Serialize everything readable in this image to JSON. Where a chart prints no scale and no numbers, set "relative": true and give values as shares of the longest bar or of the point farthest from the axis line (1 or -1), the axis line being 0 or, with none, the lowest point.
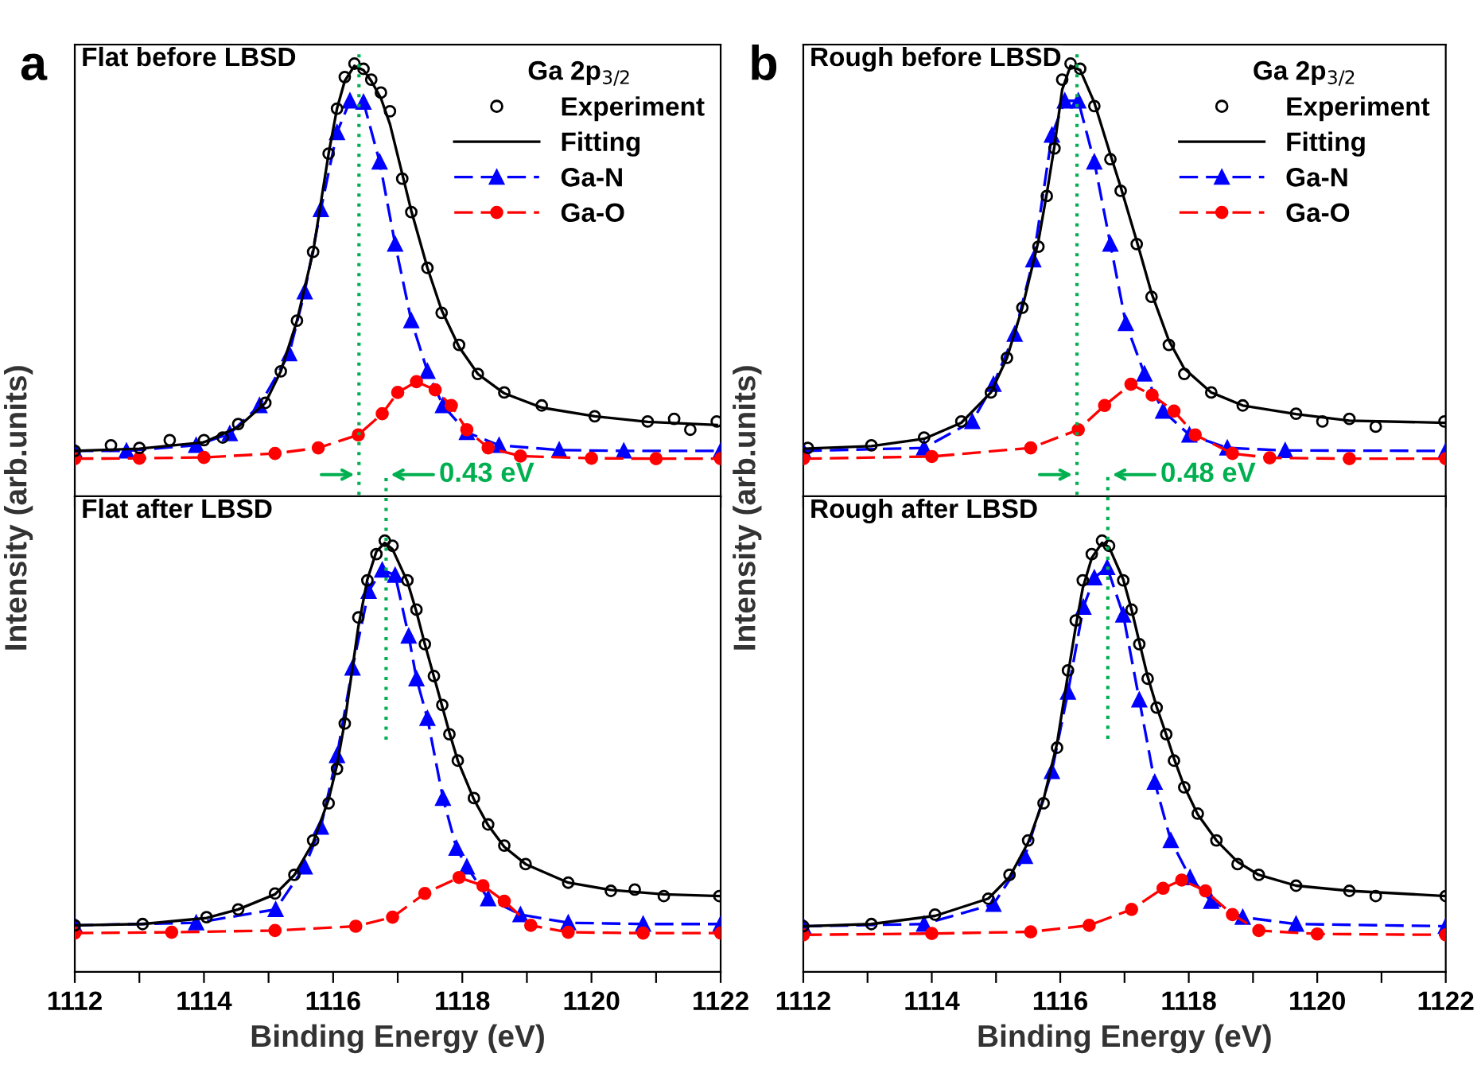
{
  "chart_data": [
    {
      "type": "line",
      "relative": true,
      "xlim": [
        1112,
        1122
      ],
      "xticks": [
        1112,
        {
          "value": 1113,
          "label": null
        },
        1114,
        {
          "value": 1115,
          "label": null
        },
        1116,
        {
          "value": 1117,
          "label": null
        },
        1118,
        {
          "value": 1119,
          "label": null
        },
        1120,
        {
          "value": 1121,
          "label": null
        },
        1122
      ],
      "tick_labels": false,
      "legend": "top right",
      "legend_title": "Ga 2p$_{3/2}$",
      "annotations": [
        "a",
        "Flat before LBSD",
        "0.43 eV"
      ],
      "ref_lines": [
        {
          "axis": "x",
          "value": 1116.4,
          "color": "#00b050",
          "line_style": "dotted"
        }
      ],
      "series": [
        {
          "name": "Experiment",
          "type": "scatter",
          "marker": "circle",
          "color": "#000000",
          "x": [
            1112.0,
            1112.56,
            1113.0,
            1113.47,
            1114.0,
            1114.29,
            1114.53,
            1114.95,
            1115.19,
            1115.44,
            1115.69,
            1115.93,
            1116.06,
            1116.18,
            1116.33,
            1116.47,
            1116.59,
            1116.74,
            1116.88,
            1117.07,
            1117.21,
            1117.46,
            1117.68,
            1117.95,
            1118.24,
            1118.65,
            1119.23,
            1120.05,
            1120.87,
            1121.28,
            1121.53,
            1121.94
          ],
          "values": [
            0.105,
            0.118,
            0.112,
            0.13,
            0.13,
            0.136,
            0.167,
            0.216,
            0.289,
            0.406,
            0.565,
            0.792,
            0.896,
            0.969,
            1.0,
            0.988,
            0.963,
            0.933,
            0.89,
            0.734,
            0.657,
            0.528,
            0.424,
            0.35,
            0.283,
            0.24,
            0.21,
            0.185,
            0.173,
            0.179,
            0.154,
            0.173
          ]
        },
        {
          "name": "Fitting",
          "marker": "none",
          "line_style": "solid",
          "color": "#000000",
          "x": [
            1112.0,
            1113.0,
            1114.0,
            1114.53,
            1114.95,
            1115.19,
            1115.44,
            1115.69,
            1115.93,
            1116.06,
            1116.18,
            1116.33,
            1116.47,
            1116.59,
            1116.74,
            1116.88,
            1117.07,
            1117.21,
            1117.46,
            1117.68,
            1117.95,
            1118.24,
            1118.65,
            1119.23,
            1120.05,
            1120.87,
            1121.94
          ],
          "values": [
            0.105,
            0.11,
            0.125,
            0.16,
            0.216,
            0.289,
            0.406,
            0.565,
            0.792,
            0.896,
            0.96,
            0.995,
            0.985,
            0.96,
            0.92,
            0.86,
            0.745,
            0.66,
            0.528,
            0.43,
            0.345,
            0.283,
            0.238,
            0.205,
            0.185,
            0.172,
            0.165
          ]
        },
        {
          "name": "Ga-N",
          "marker": "triangle",
          "line_style": "dashed",
          "color": "#0000ff",
          "x": [
            1112.0,
            1112.8,
            1113.88,
            1114.4,
            1114.86,
            1115.32,
            1115.56,
            1115.81,
            1116.06,
            1116.26,
            1116.47,
            1116.72,
            1116.96,
            1117.21,
            1117.46,
            1117.7,
            1118.07,
            1118.57,
            1119.5,
            1120.5,
            1122.0
          ],
          "values": [
            0.105,
            0.105,
            0.118,
            0.145,
            0.21,
            0.33,
            0.473,
            0.663,
            0.841,
            0.914,
            0.911,
            0.773,
            0.583,
            0.406,
            0.289,
            0.21,
            0.148,
            0.118,
            0.107,
            0.105,
            0.105
          ]
        },
        {
          "name": "Ga-O",
          "marker": "circle",
          "line_style": "dashed",
          "color": "#ff0000",
          "x": [
            1112.0,
            1113.0,
            1114.0,
            1115.1,
            1115.77,
            1116.39,
            1116.76,
            1117.0,
            1117.29,
            1117.58,
            1117.83,
            1118.07,
            1118.4,
            1118.9,
            1120.0,
            1121.0,
            1122.0
          ],
          "values": [
            0.087,
            0.088,
            0.09,
            0.099,
            0.112,
            0.142,
            0.191,
            0.24,
            0.265,
            0.246,
            0.21,
            0.154,
            0.112,
            0.093,
            0.088,
            0.087,
            0.087
          ]
        }
      ]
    },
    {
      "type": "line",
      "relative": true,
      "xlim": [
        1112,
        1122
      ],
      "xticks": [
        1112,
        {
          "value": 1113,
          "label": null
        },
        1114,
        {
          "value": 1115,
          "label": null
        },
        1116,
        {
          "value": 1117,
          "label": null
        },
        1118,
        {
          "value": 1119,
          "label": null
        },
        1120,
        {
          "value": 1121,
          "label": null
        },
        1122
      ],
      "tick_labels": "x",
      "xlabel": "Binding Energy (eV)",
      "ylabel": "Intensity (arb.units)",
      "annotations": [
        null,
        "Flat after LBSD"
      ],
      "ref_lines": [
        {
          "axis": "x",
          "value": 1116.82,
          "color": "#00b050",
          "line_style": "dotted"
        }
      ],
      "series": [
        {
          "type": "scatter",
          "marker": "circle",
          "color": "#000000",
          "x": [
            1112.0,
            1113.05,
            1114.04,
            1114.53,
            1115.1,
            1115.4,
            1115.69,
            1115.93,
            1116.06,
            1116.18,
            1116.39,
            1116.53,
            1116.67,
            1116.8,
            1116.92,
            1117.15,
            1117.29,
            1117.42,
            1117.56,
            1117.69,
            1117.8,
            1117.93,
            1118.18,
            1118.4,
            1118.65,
            1118.98,
            1119.64,
            1120.3,
            1120.67,
            1121.12,
            1121.98
          ],
          "values": [
            0.108,
            0.111,
            0.127,
            0.145,
            0.182,
            0.225,
            0.305,
            0.391,
            0.471,
            0.576,
            0.822,
            0.908,
            0.969,
            1.0,
            0.988,
            0.908,
            0.84,
            0.76,
            0.686,
            0.619,
            0.551,
            0.49,
            0.403,
            0.342,
            0.293,
            0.25,
            0.207,
            0.188,
            0.191,
            0.176,
            0.176
          ]
        },
        {
          "marker": "none",
          "line_style": "solid",
          "color": "#000000",
          "x": [
            1112.0,
            1113.05,
            1114.04,
            1114.53,
            1115.1,
            1115.4,
            1115.69,
            1115.93,
            1116.06,
            1116.18,
            1116.39,
            1116.53,
            1116.67,
            1116.8,
            1116.92,
            1117.15,
            1117.29,
            1117.42,
            1117.56,
            1117.69,
            1117.8,
            1117.93,
            1118.18,
            1118.4,
            1118.65,
            1118.98,
            1119.64,
            1120.3,
            1121.12,
            1121.98
          ],
          "values": [
            0.108,
            0.111,
            0.125,
            0.145,
            0.18,
            0.225,
            0.3,
            0.4,
            0.48,
            0.58,
            0.8,
            0.91,
            0.975,
            0.995,
            0.98,
            0.905,
            0.835,
            0.76,
            0.685,
            0.615,
            0.555,
            0.49,
            0.4,
            0.34,
            0.29,
            0.25,
            0.207,
            0.19,
            0.18,
            0.176
          ]
        },
        {
          "marker": "triangle",
          "line_style": "dashed",
          "color": "#0000ff",
          "x": [
            1112.0,
            1113.88,
            1115.11,
            1115.56,
            1115.81,
            1116.06,
            1116.3,
            1116.55,
            1116.76,
            1116.96,
            1117.17,
            1117.29,
            1117.46,
            1117.7,
            1117.91,
            1118.07,
            1118.4,
            1118.9,
            1119.64,
            1120.8,
            1122.0
          ],
          "values": [
            0.108,
            0.114,
            0.145,
            0.244,
            0.336,
            0.502,
            0.705,
            0.883,
            0.932,
            0.92,
            0.779,
            0.68,
            0.588,
            0.403,
            0.287,
            0.244,
            0.17,
            0.133,
            0.114,
            0.111,
            0.111
          ]
        },
        {
          "marker": "circle",
          "line_style": "dashed",
          "color": "#ff0000",
          "x": [
            1112.0,
            1113.5,
            1115.1,
            1116.35,
            1116.92,
            1117.42,
            1117.95,
            1118.32,
            1118.65,
            1119.06,
            1119.64,
            1120.8,
            1122.0
          ],
          "values": [
            0.09,
            0.092,
            0.096,
            0.106,
            0.127,
            0.182,
            0.219,
            0.2,
            0.164,
            0.108,
            0.092,
            0.09,
            0.09
          ]
        }
      ]
    },
    {
      "type": "line",
      "relative": true,
      "xlim": [
        1112,
        1122
      ],
      "xticks": [
        1112,
        {
          "value": 1113,
          "label": null
        },
        1114,
        {
          "value": 1115,
          "label": null
        },
        1116,
        {
          "value": 1117,
          "label": null
        },
        1118,
        {
          "value": 1119,
          "label": null
        },
        1120,
        {
          "value": 1121,
          "label": null
        },
        1122
      ],
      "tick_labels": false,
      "legend": "top right",
      "legend_title": "Ga 2p$_{3/2}$",
      "annotations": [
        "b",
        "Rough before LBSD",
        "0.48 eV"
      ],
      "ref_lines": [
        {
          "axis": "x",
          "value": 1116.26,
          "color": "#00b050",
          "line_style": "dotted"
        }
      ],
      "series": [
        {
          "name": "Experiment",
          "type": "scatter",
          "marker": "circle",
          "color": "#000000",
          "x": [
            1112.07,
            1113.06,
            1113.88,
            1114.46,
            1114.92,
            1115.17,
            1115.41,
            1115.66,
            1115.79,
            1115.91,
            1116.03,
            1116.16,
            1116.31,
            1116.53,
            1116.78,
            1116.94,
            1117.19,
            1117.42,
            1117.69,
            1117.93,
            1118.35,
            1118.84,
            1119.67,
            1120.08,
            1120.5,
            1120.91,
            1121.98
          ],
          "values": [
            0.112,
            0.118,
            0.136,
            0.173,
            0.24,
            0.32,
            0.436,
            0.577,
            0.694,
            0.804,
            0.963,
            1.0,
            0.988,
            0.902,
            0.779,
            0.706,
            0.583,
            0.461,
            0.35,
            0.283,
            0.24,
            0.21,
            0.191,
            0.173,
            0.179,
            0.161,
            0.173
          ]
        },
        {
          "name": "Fitting",
          "marker": "none",
          "line_style": "solid",
          "color": "#000000",
          "x": [
            1112.0,
            1113.06,
            1113.88,
            1114.46,
            1114.92,
            1115.17,
            1115.41,
            1115.66,
            1115.79,
            1115.91,
            1116.03,
            1116.16,
            1116.31,
            1116.53,
            1116.78,
            1116.94,
            1117.19,
            1117.42,
            1117.69,
            1117.93,
            1118.35,
            1118.84,
            1119.67,
            1120.5,
            1121.98
          ],
          "values": [
            0.11,
            0.116,
            0.133,
            0.17,
            0.24,
            0.32,
            0.436,
            0.59,
            0.7,
            0.81,
            0.94,
            0.995,
            0.985,
            0.91,
            0.79,
            0.715,
            0.59,
            0.47,
            0.36,
            0.295,
            0.24,
            0.21,
            0.19,
            0.175,
            0.17
          ]
        },
        {
          "name": "Ga-N",
          "marker": "triangle",
          "line_style": "dashed",
          "color": "#0000ff",
          "x": [
            1112.0,
            1113.88,
            1114.63,
            1114.96,
            1115.29,
            1115.58,
            1115.87,
            1116.07,
            1116.28,
            1116.53,
            1116.78,
            1117.02,
            1117.31,
            1117.6,
            1118.01,
            1118.6,
            1119.5,
            1122.0
          ],
          "values": [
            0.105,
            0.112,
            0.173,
            0.259,
            0.375,
            0.547,
            0.835,
            0.914,
            0.914,
            0.773,
            0.583,
            0.4,
            0.283,
            0.197,
            0.142,
            0.112,
            0.106,
            0.105
          ]
        },
        {
          "name": "Ga-O",
          "marker": "circle",
          "line_style": "dashed",
          "color": "#ff0000",
          "x": [
            1112.0,
            1114.0,
            1115.54,
            1116.28,
            1116.69,
            1117.1,
            1117.43,
            1117.77,
            1118.1,
            1118.68,
            1119.26,
            1120.5,
            1122.0
          ],
          "values": [
            0.087,
            0.092,
            0.112,
            0.154,
            0.21,
            0.259,
            0.234,
            0.197,
            0.142,
            0.099,
            0.089,
            0.087,
            0.087
          ]
        }
      ]
    },
    {
      "type": "line",
      "relative": true,
      "xlim": [
        1112,
        1122
      ],
      "xticks": [
        1112,
        {
          "value": 1113,
          "label": null
        },
        1114,
        {
          "value": 1115,
          "label": null
        },
        1116,
        {
          "value": 1117,
          "label": null
        },
        1118,
        {
          "value": 1119,
          "label": null
        },
        1120,
        {
          "value": 1121,
          "label": null
        },
        1122
      ],
      "tick_labels": "x",
      "xlabel": "Binding Energy (eV)",
      "ylabel": "Intensity (arb.units)",
      "annotations": [
        null,
        "Rough after LBSD"
      ],
      "ref_lines": [
        {
          "axis": "x",
          "value": 1116.74,
          "color": "#00b050",
          "line_style": "dotted"
        }
      ],
      "series": [
        {
          "type": "scatter",
          "marker": "circle",
          "color": "#000000",
          "x": [
            1112.0,
            1113.06,
            1114.05,
            1114.88,
            1115.21,
            1115.5,
            1115.74,
            1115.95,
            1116.12,
            1116.24,
            1116.35,
            1116.49,
            1116.65,
            1116.76,
            1116.98,
            1117.11,
            1117.23,
            1117.36,
            1117.5,
            1117.65,
            1117.77,
            1117.93,
            1118.14,
            1118.43,
            1118.76,
            1119.09,
            1119.67,
            1120.5,
            1120.91,
            1122.0
          ],
          "values": [
            0.106,
            0.111,
            0.133,
            0.17,
            0.225,
            0.305,
            0.391,
            0.52,
            0.699,
            0.815,
            0.908,
            0.969,
            1.0,
            0.988,
            0.908,
            0.84,
            0.76,
            0.68,
            0.613,
            0.551,
            0.49,
            0.428,
            0.367,
            0.305,
            0.25,
            0.225,
            0.2,
            0.188,
            0.176,
            0.176
          ]
        },
        {
          "marker": "none",
          "line_style": "solid",
          "color": "#000000",
          "x": [
            1112.0,
            1113.06,
            1114.05,
            1114.88,
            1115.21,
            1115.5,
            1115.74,
            1115.95,
            1116.12,
            1116.24,
            1116.35,
            1116.49,
            1116.65,
            1116.76,
            1116.98,
            1117.11,
            1117.23,
            1117.36,
            1117.5,
            1117.65,
            1117.77,
            1117.93,
            1118.14,
            1118.43,
            1118.76,
            1119.09,
            1119.67,
            1120.5,
            1122.0
          ],
          "values": [
            0.106,
            0.111,
            0.13,
            0.17,
            0.22,
            0.3,
            0.4,
            0.53,
            0.69,
            0.8,
            0.89,
            0.96,
            0.995,
            0.985,
            0.91,
            0.84,
            0.765,
            0.685,
            0.615,
            0.55,
            0.495,
            0.43,
            0.365,
            0.305,
            0.255,
            0.225,
            0.2,
            0.188,
            0.176
          ]
        },
        {
          "marker": "triangle",
          "line_style": "dashed",
          "color": "#0000ff",
          "x": [
            1112.0,
            1113.88,
            1114.96,
            1115.45,
            1115.87,
            1116.12,
            1116.36,
            1116.53,
            1116.73,
            1116.98,
            1117.23,
            1117.47,
            1117.72,
            1118.02,
            1118.35,
            1118.84,
            1119.67,
            1122.0
          ],
          "values": [
            0.106,
            0.111,
            0.157,
            0.268,
            0.465,
            0.649,
            0.846,
            0.914,
            0.938,
            0.828,
            0.631,
            0.44,
            0.305,
            0.219,
            0.164,
            0.127,
            0.111,
            0.106
          ]
        },
        {
          "marker": "circle",
          "line_style": "dashed",
          "color": "#ff0000",
          "x": [
            1112.0,
            1114.0,
            1115.54,
            1116.45,
            1117.11,
            1117.6,
            1117.89,
            1118.26,
            1118.68,
            1119.09,
            1120.0,
            1122.0
          ],
          "values": [
            0.086,
            0.089,
            0.093,
            0.108,
            0.145,
            0.194,
            0.213,
            0.188,
            0.133,
            0.096,
            0.088,
            0.086
          ]
        }
      ]
    }
  ]
}
